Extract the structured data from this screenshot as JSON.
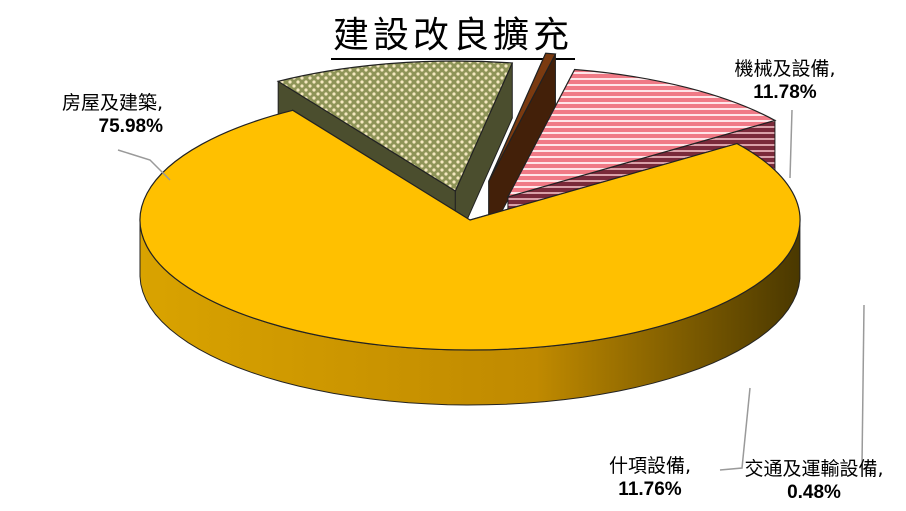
{
  "chart_data": {
    "type": "pie",
    "title": "建設改良擴充",
    "slices": [
      {
        "label": "房屋及建築,",
        "value": 75.98,
        "value_text": "75.98%",
        "color": "#FFC000"
      },
      {
        "label": "機械及設備,",
        "value": 11.78,
        "value_text": "11.78%",
        "color": "#A6A96A"
      },
      {
        "label": "交通及運輸設備,",
        "value": 0.48,
        "value_text": "0.48%",
        "color": "#7A3A10"
      },
      {
        "label": "什項設備,",
        "value": 11.76,
        "value_text": "11.76%",
        "color": "#F28C8C"
      }
    ],
    "legend": "none",
    "style": "3d-exploded"
  }
}
